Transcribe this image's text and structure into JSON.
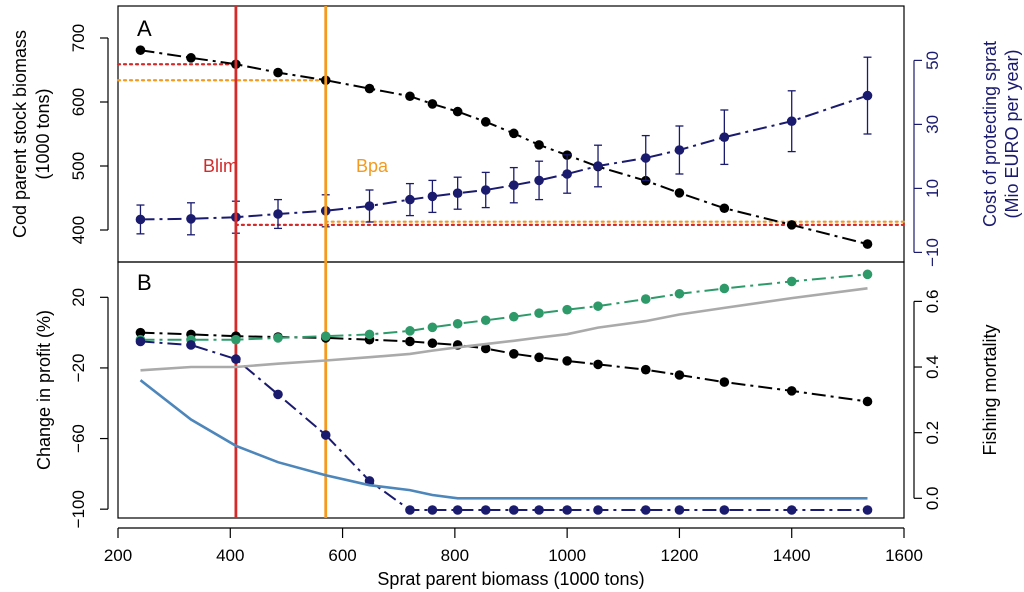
{
  "figure": {
    "xlabel": "Sprat parent biomass (1000 tons)",
    "xticks": [
      200,
      400,
      600,
      800,
      1000,
      1200,
      1400,
      1600
    ]
  },
  "colors": {
    "black": "#000000",
    "navy": "#1a1a6e",
    "green": "#2e9a6a",
    "grey": "#aaaaaa",
    "steel_blue": "#4d86bb",
    "blim_red": "#d42a2a",
    "bpa_orange": "#f39a1f"
  },
  "panel_a": {
    "panel_label": "A",
    "ylabel_left_line1": "Cod parent stock biomass",
    "ylabel_left_line2": "(1000 tons)",
    "ylabel_right_line1": "Cost of protecting sprat",
    "ylabel_right_line2": "(Mio EURO per year)",
    "blim_label": "Blim",
    "bpa_label": "Bpa"
  },
  "panel_b": {
    "panel_label": "B",
    "ylabel_left": "Change in profit (%)",
    "ylabel_right": "Fishing mortality"
  },
  "chart_data": [
    {
      "type": "line",
      "panel": "A",
      "xlabel": "Sprat parent biomass (1000 tons)",
      "ylabel": "Cod parent stock biomass (1000 tons)",
      "ylabel_right": "Cost of protecting sprat (Mio EURO per year)",
      "xlim": [
        200,
        1600
      ],
      "ylim": [
        350,
        750
      ],
      "ylim_right": [
        -13,
        67
      ],
      "yticks": [
        400,
        500,
        600,
        700
      ],
      "yticks_right": [
        -10,
        10,
        30,
        50
      ],
      "x": [
        240,
        330,
        410,
        485,
        570,
        648,
        720,
        760,
        805,
        855,
        905,
        950,
        1000,
        1055,
        1140,
        1200,
        1280,
        1400,
        1535
      ],
      "series": [
        {
          "axis": "left",
          "color": "black",
          "values": [
            681,
            669,
            659,
            646,
            634,
            621,
            609,
            597,
            585,
            569,
            551,
            533,
            517,
            499,
            477,
            458,
            434,
            408,
            378
          ]
        },
        {
          "axis": "right",
          "color": "navy",
          "values": [
            0.3,
            0.5,
            1.0,
            2.0,
            3.0,
            4.5,
            6.5,
            7.5,
            8.5,
            9.5,
            11,
            12.5,
            14.5,
            17,
            19.5,
            22,
            26,
            31,
            39
          ],
          "errors": [
            4.5,
            5.0,
            5.0,
            4.5,
            5.0,
            5.0,
            5.0,
            5.0,
            5.0,
            5.5,
            5.5,
            6.0,
            6.0,
            6.5,
            7.0,
            7.5,
            8.5,
            9.5,
            12.0
          ]
        }
      ],
      "reference_lines": {
        "vertical": [
          {
            "label": "Blim",
            "x": 410,
            "color": "blim_red"
          },
          {
            "label": "Bpa",
            "x": 570,
            "color": "bpa_orange"
          }
        ],
        "horizontal_dotted": [
          {
            "axis": "left",
            "y": 659,
            "color": "blim_red",
            "x_from": 200,
            "x_to": 410
          },
          {
            "axis": "left",
            "y": 634,
            "color": "bpa_orange",
            "x_from": 200,
            "x_to": 570
          },
          {
            "axis": "left",
            "y": 408,
            "color": "blim_red",
            "x_from": 410,
            "x_to": 1600
          },
          {
            "axis": "left",
            "y": 413,
            "color": "bpa_orange",
            "x_from": 570,
            "x_to": 1600
          }
        ]
      }
    },
    {
      "type": "line",
      "panel": "B",
      "xlabel": "Sprat parent biomass (1000 tons)",
      "ylabel": "Change in profit (%)",
      "ylabel_right": "Fishing mortality",
      "xlim": [
        200,
        1600
      ],
      "ylim": [
        -105,
        40
      ],
      "ylim_right": [
        -0.06,
        0.72
      ],
      "yticks": [
        -100,
        -60,
        -20,
        20
      ],
      "yticks_right": [
        0.0,
        0.2,
        0.4,
        0.6
      ],
      "x": [
        240,
        330,
        410,
        485,
        570,
        648,
        720,
        760,
        805,
        855,
        905,
        950,
        1000,
        1055,
        1140,
        1200,
        1280,
        1400,
        1535
      ],
      "series": [
        {
          "axis": "left",
          "color": "black",
          "values": [
            0,
            -1,
            -2,
            -2.5,
            -3,
            -4,
            -5,
            -6,
            -7,
            -9,
            -12,
            -14,
            -16,
            -18,
            -21,
            -24,
            -28,
            -33,
            -39
          ]
        },
        {
          "axis": "left",
          "color": "green",
          "values": [
            -4,
            -4,
            -4,
            -3,
            -2,
            -1,
            1,
            3,
            5,
            7,
            9,
            11,
            13,
            15,
            19,
            22,
            25,
            29,
            33
          ]
        },
        {
          "axis": "left",
          "color": "navy",
          "values": [
            -5,
            -7,
            -15,
            -35,
            -58,
            -84,
            -107,
            -113,
            -115,
            -115,
            -115,
            -115,
            -115,
            -115,
            -115,
            -115,
            -115,
            -115,
            -115
          ]
        },
        {
          "axis": "right",
          "color": "grey",
          "line_only": true,
          "values": [
            0.39,
            0.4,
            0.4,
            0.41,
            0.42,
            0.43,
            0.44,
            0.45,
            0.46,
            0.47,
            0.48,
            0.49,
            0.5,
            0.52,
            0.54,
            0.56,
            0.58,
            0.61,
            0.64
          ]
        },
        {
          "axis": "right",
          "color": "steel_blue",
          "line_only": true,
          "values": [
            0.36,
            0.24,
            0.16,
            0.11,
            0.07,
            0.04,
            0.025,
            0.01,
            0,
            0,
            0,
            0,
            0,
            0,
            0,
            0,
            0,
            0,
            0
          ]
        }
      ]
    }
  ]
}
